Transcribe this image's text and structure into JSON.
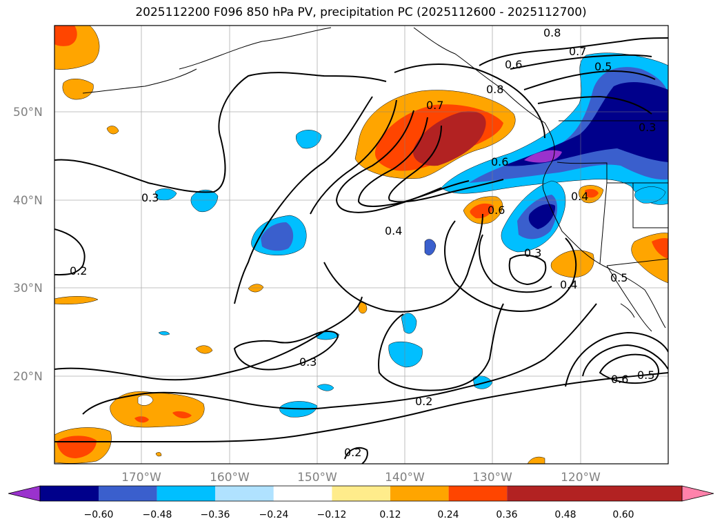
{
  "title": "2025112200 F096 850 hPa PV, precipitation PC (2025112600 - 2025112700)",
  "map": {
    "lat_labels": [
      "50°N",
      "40°N",
      "30°N",
      "20°N"
    ],
    "lon_labels": [
      "170°W",
      "160°W",
      "150°W",
      "140°W",
      "130°W",
      "120°W"
    ],
    "contour_labels": [
      "0.8",
      "0.7",
      "0.6",
      "0.5",
      "0.8",
      "0.7",
      "0.3",
      "0.6",
      "0.3",
      "0.4",
      "0.6",
      "0.4",
      "0.3",
      "0.2",
      "0.5",
      "0.4",
      "0.3",
      "0.2",
      "0.6",
      "0.5",
      "0.2"
    ]
  },
  "colorbar": {
    "ticks": [
      "−0.60",
      "−0.48",
      "−0.36",
      "−0.24",
      "−0.12",
      "0.12",
      "0.24",
      "0.36",
      "0.48",
      "0.60"
    ],
    "colors": [
      "#9a32cd",
      "#00008b",
      "#3a5fcd",
      "#00bfff",
      "#b0e2ff",
      "#ffffff",
      "#ffec8b",
      "#ffa500",
      "#ff4500",
      "#b22222",
      "#ff82ab"
    ]
  }
}
